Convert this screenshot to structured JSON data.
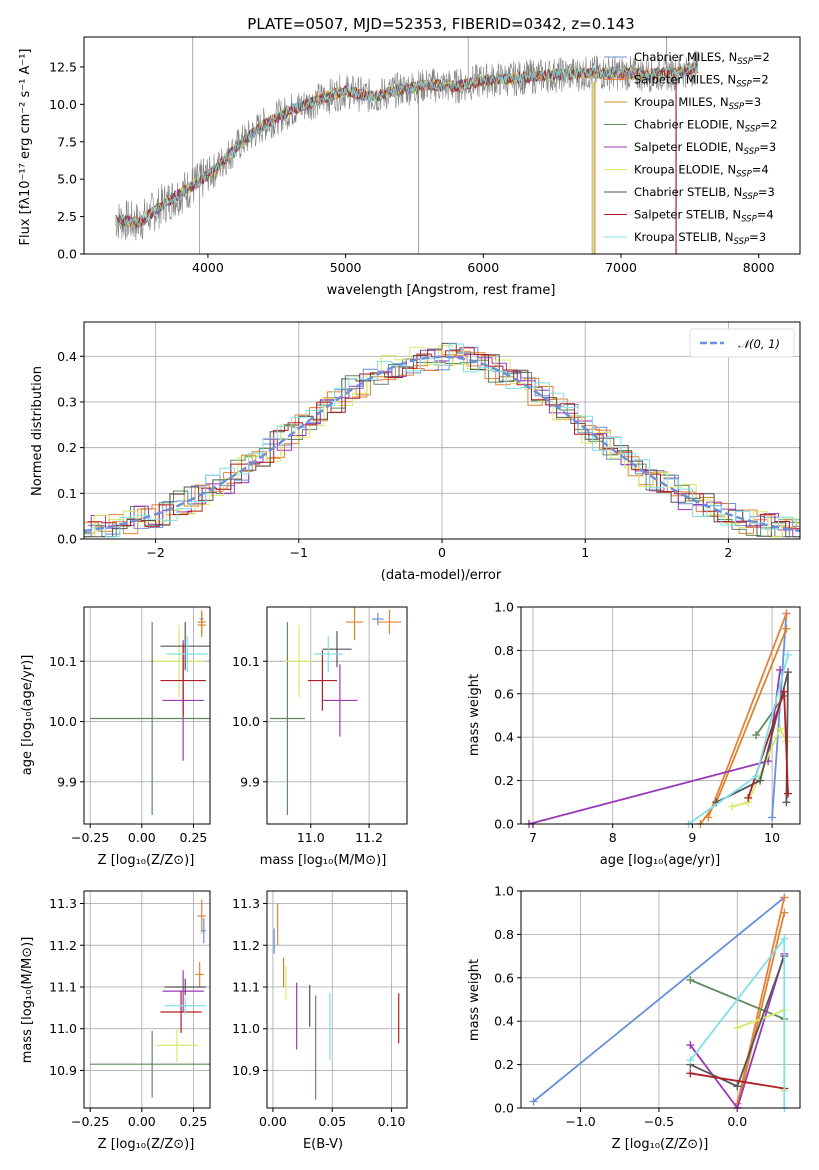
{
  "figure": {
    "title": "PLATE=0507, MJD=52353, FIBERID=0342, z=0.143"
  },
  "models": [
    {
      "name": "Chabrier MILES",
      "nssp": "2",
      "color": "#6a8fdb"
    },
    {
      "name": "Salpeter MILES",
      "nssp": "2",
      "color": "#e8803a"
    },
    {
      "name": "Kroupa MILES",
      "nssp": "3",
      "color": "#d9852f"
    },
    {
      "name": "Chabrier ELODIE",
      "nssp": "2",
      "color": "#5f8a5f"
    },
    {
      "name": "Salpeter ELODIE",
      "nssp": "3",
      "color": "#9b38b8"
    },
    {
      "name": "Kroupa ELODIE",
      "nssp": "4",
      "color": "#d8e86a"
    },
    {
      "name": "Chabrier STELIB",
      "nssp": "3",
      "color": "#555555"
    },
    {
      "name": "Salpeter STELIB",
      "nssp": "4",
      "color": "#b01f24"
    },
    {
      "name": "Kroupa STELIB",
      "nssp": "3",
      "color": "#7fe0e8"
    }
  ],
  "chart_data": [
    {
      "id": "spectrum",
      "type": "line",
      "xlabel": "wavelength [Angstrom, rest frame]",
      "ylabel": "Flux [fλ10⁻¹⁷ erg cm⁻² s⁻¹ A⁻¹]",
      "xlim": [
        3100,
        8300
      ],
      "ylim": [
        0,
        14.5
      ],
      "xticks": [
        "4000",
        "5000",
        "6000",
        "7000",
        "8000"
      ],
      "yticks": [
        "0.0",
        "2.5",
        "5.0",
        "7.5",
        "10.0",
        "12.5"
      ],
      "legend_position": "upper right",
      "data_wavelength": [
        3330,
        3500,
        3700,
        3900,
        4050,
        4200,
        4400,
        4600,
        4800,
        5000,
        5200,
        5400,
        5600,
        5800,
        6000,
        6200,
        6400,
        6600,
        6800,
        7000,
        7200,
        7400,
        7560
      ],
      "data_flux": [
        2.3,
        2.1,
        3.5,
        4.6,
        5.6,
        7.1,
        8.6,
        9.6,
        10.3,
        10.9,
        10.5,
        11.0,
        11.3,
        11.2,
        11.6,
        11.7,
        11.9,
        12.0,
        12.1,
        12.1,
        12.0,
        12.1,
        12.5
      ],
      "data_line_color": "#808080"
    },
    {
      "id": "residuals",
      "type": "line",
      "xlabel": "(data-model)/error",
      "ylabel": "Normed distribution",
      "xlim": [
        -2.5,
        2.5
      ],
      "ylim": [
        0,
        0.475
      ],
      "xticks": [
        "−2",
        "−1",
        "0",
        "1",
        "2"
      ],
      "yticks": [
        "0.0",
        "0.1",
        "0.2",
        "0.3",
        "0.4"
      ],
      "grid": true,
      "legend_position": "upper right",
      "reference_curve": {
        "label": "𝒩(0, 1)",
        "mean": 0,
        "sigma": 1,
        "color": "#6a8fdb"
      }
    },
    {
      "id": "age_vs_Z",
      "type": "scatter",
      "xlabel": "Z [log₁₀(Z/Z⊙)]",
      "ylabel": "age  [log₁₀(age/yr)]",
      "xlim": [
        -0.28,
        0.33
      ],
      "ylim": [
        9.83,
        10.19
      ],
      "xticks": [
        -0.25,
        0.0,
        0.25
      ],
      "xtick_labels": [
        "−0.25",
        "0.00",
        "0.25"
      ],
      "yticks": [
        9.9,
        10.0,
        10.1
      ],
      "ytick_labels": [
        "9.9",
        "10.0",
        "10.1"
      ],
      "grid": true,
      "points": [
        {
          "model": 0,
          "x": 0.29,
          "y": 10.17,
          "xerr": 0.01,
          "yerr": 0.01
        },
        {
          "model": 1,
          "x": 0.29,
          "y": 10.165,
          "xerr": 0.02,
          "yerr": 0.02
        },
        {
          "model": 2,
          "x": 0.29,
          "y": 10.16,
          "xerr": 0.02,
          "yerr": 0.02
        },
        {
          "model": 3,
          "x": 0.05,
          "y": 10.005,
          "xerr": 0.3,
          "yerr": 0.16
        },
        {
          "model": 4,
          "x": 0.2,
          "y": 10.035,
          "xerr": 0.1,
          "yerr": 0.1
        },
        {
          "model": 5,
          "x": 0.18,
          "y": 10.1,
          "xerr": 0.12,
          "yerr": 0.06
        },
        {
          "model": 6,
          "x": 0.21,
          "y": 10.125,
          "xerr": 0.12,
          "yerr": 0.04
        },
        {
          "model": 7,
          "x": 0.2,
          "y": 10.068,
          "xerr": 0.11,
          "yerr": 0.06
        },
        {
          "model": 8,
          "x": 0.22,
          "y": 10.112,
          "xerr": 0.1,
          "yerr": 0.03
        }
      ]
    },
    {
      "id": "age_vs_mass",
      "type": "scatter",
      "xlabel": "mass [log₁₀(M/M⊙)]",
      "ylabel": "",
      "xlim": [
        10.85,
        11.33
      ],
      "ylim": [
        9.83,
        10.19
      ],
      "xticks": [
        11.0,
        11.2
      ],
      "xtick_labels": [
        "11.0",
        "11.2"
      ],
      "yticks": [
        9.9,
        10.0,
        10.1
      ],
      "ytick_labels": [
        "9.9",
        "10.0",
        "10.1"
      ],
      "grid": true,
      "points": [
        {
          "model": 0,
          "x": 11.23,
          "y": 10.17,
          "xerr": 0.02,
          "yerr": 0.01
        },
        {
          "model": 1,
          "x": 11.27,
          "y": 10.165,
          "xerr": 0.04,
          "yerr": 0.02
        },
        {
          "model": 2,
          "x": 11.15,
          "y": 10.165,
          "xerr": 0.03,
          "yerr": 0.03
        },
        {
          "model": 3,
          "x": 10.92,
          "y": 10.005,
          "xerr": 0.06,
          "yerr": 0.16
        },
        {
          "model": 4,
          "x": 11.1,
          "y": 10.035,
          "xerr": 0.06,
          "yerr": 0.06
        },
        {
          "model": 5,
          "x": 10.96,
          "y": 10.1,
          "xerr": 0.05,
          "yerr": 0.06
        },
        {
          "model": 6,
          "x": 11.09,
          "y": 10.12,
          "xerr": 0.05,
          "yerr": 0.03
        },
        {
          "model": 7,
          "x": 11.04,
          "y": 10.068,
          "xerr": 0.05,
          "yerr": 0.05
        },
        {
          "model": 8,
          "x": 11.06,
          "y": 10.112,
          "xerr": 0.05,
          "yerr": 0.03
        }
      ]
    },
    {
      "id": "weight_vs_age",
      "type": "line",
      "xlabel": "age  [log₁₀(age/yr)]",
      "ylabel": "mass weight",
      "xlim": [
        6.85,
        10.35
      ],
      "ylim": [
        0,
        1
      ],
      "xticks": [
        7,
        8,
        9,
        10
      ],
      "xtick_labels": [
        "7",
        "8",
        "9",
        "10"
      ],
      "yticks": [
        0,
        0.2,
        0.4,
        0.6,
        0.8,
        1.0
      ],
      "ytick_labels": [
        "0.0",
        "0.2",
        "0.4",
        "0.6",
        "0.8",
        "1.0"
      ],
      "grid": true,
      "series": [
        {
          "model": 0,
          "x": [
            10.0,
            10.18
          ],
          "y": [
            0.03,
            0.97
          ]
        },
        {
          "model": 1,
          "x": [
            9.2,
            10.18
          ],
          "y": [
            0.03,
            0.97
          ]
        },
        {
          "model": 2,
          "x": [
            9.1,
            9.3,
            10.18
          ],
          "y": [
            0.0,
            0.1,
            0.9
          ]
        },
        {
          "model": 3,
          "x": [
            9.8,
            10.15
          ],
          "y": [
            0.41,
            0.59
          ]
        },
        {
          "model": 4,
          "x": [
            6.95,
            9.95,
            10.1
          ],
          "y": [
            0.0,
            0.29,
            0.71
          ]
        },
        {
          "model": 5,
          "x": [
            9.5,
            9.7,
            10.1,
            10.18
          ],
          "y": [
            0.08,
            0.1,
            0.44,
            0.38
          ]
        },
        {
          "model": 6,
          "x": [
            9.3,
            9.85,
            10.2,
            10.18
          ],
          "y": [
            0.1,
            0.2,
            0.7,
            0.1
          ]
        },
        {
          "model": 7,
          "x": [
            9.7,
            10.15,
            10.2
          ],
          "y": [
            0.12,
            0.61,
            0.14
          ]
        },
        {
          "model": 8,
          "x": [
            8.95,
            9.8,
            10.2
          ],
          "y": [
            0.0,
            0.22,
            0.78
          ]
        }
      ]
    },
    {
      "id": "mass_vs_Z",
      "type": "scatter",
      "xlabel": "Z [log₁₀(Z/Z⊙)]",
      "ylabel": "mass [log₁₀(M/M⊙)]",
      "xlim": [
        -0.28,
        0.33
      ],
      "ylim": [
        10.81,
        11.33
      ],
      "xticks": [
        -0.25,
        0.0,
        0.25
      ],
      "xtick_labels": [
        "−0.25",
        "0.00",
        "0.25"
      ],
      "yticks": [
        10.9,
        11.0,
        11.1,
        11.2,
        11.3
      ],
      "ytick_labels": [
        "10.9",
        "11.0",
        "11.1",
        "11.2",
        "11.3"
      ],
      "grid": true,
      "points": [
        {
          "model": 0,
          "x": 0.3,
          "y": 11.235,
          "xerr": 0.01,
          "yerr": 0.03
        },
        {
          "model": 1,
          "x": 0.29,
          "y": 11.27,
          "xerr": 0.02,
          "yerr": 0.04
        },
        {
          "model": 2,
          "x": 0.28,
          "y": 11.13,
          "xerr": 0.02,
          "yerr": 0.03
        },
        {
          "model": 3,
          "x": 0.05,
          "y": 10.915,
          "xerr": 0.3,
          "yerr": 0.08
        },
        {
          "model": 4,
          "x": 0.2,
          "y": 11.09,
          "xerr": 0.1,
          "yerr": 0.05
        },
        {
          "model": 5,
          "x": 0.17,
          "y": 10.96,
          "xerr": 0.1,
          "yerr": 0.04
        },
        {
          "model": 6,
          "x": 0.21,
          "y": 11.1,
          "xerr": 0.1,
          "yerr": 0.02
        },
        {
          "model": 7,
          "x": 0.19,
          "y": 11.04,
          "xerr": 0.1,
          "yerr": 0.05
        },
        {
          "model": 8,
          "x": 0.21,
          "y": 11.055,
          "xerr": 0.1,
          "yerr": 0.02
        }
      ]
    },
    {
      "id": "mass_vs_ebv",
      "type": "scatter",
      "xlabel": "E(B-V)",
      "ylabel": "",
      "xlim": [
        -0.005,
        0.113
      ],
      "ylim": [
        10.81,
        11.33
      ],
      "xticks": [
        0.0,
        0.05,
        0.1
      ],
      "xtick_labels": [
        "0.00",
        "0.05",
        "0.10"
      ],
      "yticks": [
        10.9,
        11.0,
        11.1,
        11.2,
        11.3
      ],
      "ytick_labels": [
        "10.9",
        "11.0",
        "11.1",
        "11.2",
        "11.3"
      ],
      "grid": true,
      "points": [
        {
          "model": 0,
          "x": 0.001,
          "y": 11.21,
          "xerr": 0.0,
          "yerr": 0.03
        },
        {
          "model": 1,
          "x": 0.004,
          "y": 11.25,
          "xerr": 0.0,
          "yerr": 0.05
        },
        {
          "model": 2,
          "x": 0.009,
          "y": 11.135,
          "xerr": 0.0,
          "yerr": 0.035
        },
        {
          "model": 3,
          "x": 0.036,
          "y": 10.955,
          "xerr": 0.0,
          "yerr": 0.125
        },
        {
          "model": 4,
          "x": 0.02,
          "y": 11.03,
          "xerr": 0.0,
          "yerr": 0.08
        },
        {
          "model": 5,
          "x": 0.011,
          "y": 11.11,
          "xerr": 0.0,
          "yerr": 0.04
        },
        {
          "model": 6,
          "x": 0.031,
          "y": 11.055,
          "xerr": 0.0,
          "yerr": 0.05
        },
        {
          "model": 7,
          "x": 0.106,
          "y": 11.025,
          "xerr": 0.0,
          "yerr": 0.06
        },
        {
          "model": 8,
          "x": 0.048,
          "y": 11.005,
          "xerr": 0.0,
          "yerr": 0.08
        }
      ]
    },
    {
      "id": "weight_vs_Z",
      "type": "line",
      "xlabel": "Z [log₁₀(Z/Z⊙)]",
      "ylabel": "mass weight",
      "xlim": [
        -1.38,
        0.4
      ],
      "ylim": [
        0,
        1
      ],
      "xticks": [
        -1.0,
        -0.5,
        0.0
      ],
      "xtick_labels": [
        "−1.0",
        "−0.5",
        "0.0"
      ],
      "yticks": [
        0,
        0.2,
        0.4,
        0.6,
        0.8,
        1.0
      ],
      "ytick_labels": [
        "0.0",
        "0.2",
        "0.4",
        "0.6",
        "0.8",
        "1.0"
      ],
      "grid": true,
      "series": [
        {
          "model": 0,
          "x": [
            -1.3,
            0.3
          ],
          "y": [
            0.03,
            0.97
          ]
        },
        {
          "model": 1,
          "x": [
            0.0,
            0.3
          ],
          "y": [
            0.02,
            0.97
          ]
        },
        {
          "model": 2,
          "x": [
            0.0,
            0.3
          ],
          "y": [
            0.0,
            0.9
          ]
        },
        {
          "model": 3,
          "x": [
            -0.3,
            0.3
          ],
          "y": [
            0.59,
            0.41
          ]
        },
        {
          "model": 4,
          "x": [
            -0.3,
            0.0,
            0.3
          ],
          "y": [
            0.29,
            0.0,
            0.71
          ]
        },
        {
          "model": 5,
          "x": [
            0.0,
            0.3,
            0.3
          ],
          "y": [
            0.37,
            0.45,
            0.08
          ]
        },
        {
          "model": 6,
          "x": [
            -0.3,
            0.0,
            0.3
          ],
          "y": [
            0.2,
            0.1,
            0.7
          ]
        },
        {
          "model": 7,
          "x": [
            -0.3,
            0.3
          ],
          "y": [
            0.16,
            0.09
          ]
        },
        {
          "model": 8,
          "x": [
            -0.3,
            0.3,
            0.3
          ],
          "y": [
            0.22,
            0.78,
            0.0
          ]
        }
      ]
    }
  ]
}
